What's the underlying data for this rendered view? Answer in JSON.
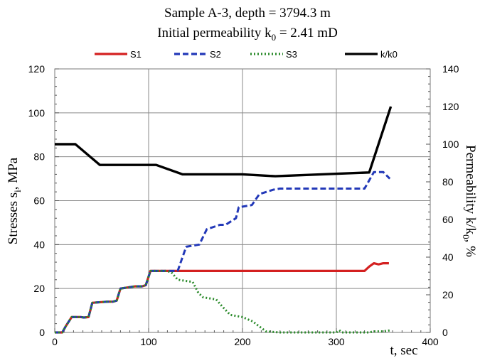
{
  "chart_data": {
    "type": "line",
    "title_line1": "Sample A-3, depth = 3794.3 m",
    "title_line2_prefix": "Initial permeability k",
    "title_line2_sub": "0",
    "title_line2_suffix": " = 2.41 mD",
    "xlabel": "t, sec",
    "ylabel_left_prefix": "Stresses s",
    "ylabel_left_sub": "i",
    "ylabel_left_suffix": ", MPa",
    "ylabel_right_prefix": "Permeability k/k",
    "ylabel_right_sub": "0",
    "ylabel_right_suffix": ", %",
    "xlim": [
      0,
      400
    ],
    "ylim_left": [
      0,
      120
    ],
    "ylim_right": [
      0,
      140
    ],
    "x_ticks": [
      0,
      100,
      200,
      300,
      400
    ],
    "y_left_ticks": [
      0,
      20,
      40,
      60,
      80,
      100,
      120
    ],
    "y_right_ticks": [
      0,
      20,
      40,
      60,
      80,
      100,
      120,
      140
    ],
    "grid": true,
    "legend_position": "top",
    "series": [
      {
        "name": "S1",
        "axis": "left",
        "color": "#d42020",
        "dash": "solid",
        "points": [
          [
            0,
            0
          ],
          [
            8,
            0
          ],
          [
            12,
            3
          ],
          [
            18,
            7
          ],
          [
            28,
            7
          ],
          [
            31,
            6.8
          ],
          [
            36,
            7
          ],
          [
            40,
            13.5
          ],
          [
            56,
            14
          ],
          [
            62,
            14
          ],
          [
            66,
            14.5
          ],
          [
            70,
            20
          ],
          [
            86,
            21
          ],
          [
            93,
            21
          ],
          [
            97,
            21.5
          ],
          [
            102,
            28
          ],
          [
            110,
            28
          ],
          [
            330,
            28
          ],
          [
            335,
            30
          ],
          [
            340,
            31.5
          ],
          [
            345,
            31
          ],
          [
            350,
            31.5
          ],
          [
            356,
            31.5
          ]
        ]
      },
      {
        "name": "S2",
        "axis": "left",
        "color": "#2238b8",
        "dash": "dashed",
        "points": [
          [
            0,
            0
          ],
          [
            8,
            0
          ],
          [
            12,
            3
          ],
          [
            18,
            7
          ],
          [
            28,
            7
          ],
          [
            31,
            6.8
          ],
          [
            36,
            7
          ],
          [
            40,
            13.5
          ],
          [
            56,
            14
          ],
          [
            62,
            14
          ],
          [
            66,
            14.5
          ],
          [
            70,
            20
          ],
          [
            86,
            21
          ],
          [
            93,
            21
          ],
          [
            97,
            21.5
          ],
          [
            102,
            28
          ],
          [
            118,
            28
          ],
          [
            121,
            28
          ],
          [
            131,
            28
          ],
          [
            140,
            39
          ],
          [
            154,
            40
          ],
          [
            162,
            47
          ],
          [
            176,
            49
          ],
          [
            182,
            49
          ],
          [
            193,
            52
          ],
          [
            196,
            57
          ],
          [
            210,
            58
          ],
          [
            218,
            63
          ],
          [
            233,
            65
          ],
          [
            240,
            65.5
          ],
          [
            310,
            65.5
          ],
          [
            330,
            65.5
          ],
          [
            340,
            73
          ],
          [
            350,
            73
          ],
          [
            357,
            70
          ]
        ]
      },
      {
        "name": "S3",
        "axis": "left",
        "color": "#2a8a2a",
        "dash": "dotted",
        "points": [
          [
            0,
            0
          ],
          [
            8,
            0
          ],
          [
            12,
            3
          ],
          [
            18,
            7
          ],
          [
            28,
            7
          ],
          [
            31,
            6.8
          ],
          [
            36,
            7
          ],
          [
            40,
            13.5
          ],
          [
            56,
            14
          ],
          [
            62,
            14
          ],
          [
            66,
            14.5
          ],
          [
            70,
            20
          ],
          [
            86,
            21
          ],
          [
            93,
            21
          ],
          [
            97,
            21.5
          ],
          [
            102,
            28
          ],
          [
            118,
            28
          ],
          [
            124,
            27.5
          ],
          [
            131,
            24
          ],
          [
            147,
            23
          ],
          [
            153,
            18
          ],
          [
            158,
            16
          ],
          [
            172,
            15
          ],
          [
            178,
            12
          ],
          [
            187,
            8
          ],
          [
            200,
            7
          ],
          [
            211,
            5
          ],
          [
            217,
            3
          ],
          [
            225,
            0.5
          ],
          [
            240,
            0
          ],
          [
            300,
            0
          ],
          [
            303,
            1
          ],
          [
            306,
            0
          ],
          [
            335,
            0
          ],
          [
            340,
            0.5
          ],
          [
            350,
            0.5
          ],
          [
            358,
            1
          ]
        ]
      },
      {
        "name": "k/k0",
        "axis": "right",
        "color": "#000000",
        "dash": "solid",
        "points": [
          [
            0,
            100
          ],
          [
            22,
            100
          ],
          [
            48,
            89
          ],
          [
            108,
            89
          ],
          [
            136,
            84
          ],
          [
            200,
            84
          ],
          [
            235,
            83
          ],
          [
            335,
            85
          ],
          [
            358,
            120
          ]
        ]
      }
    ]
  }
}
